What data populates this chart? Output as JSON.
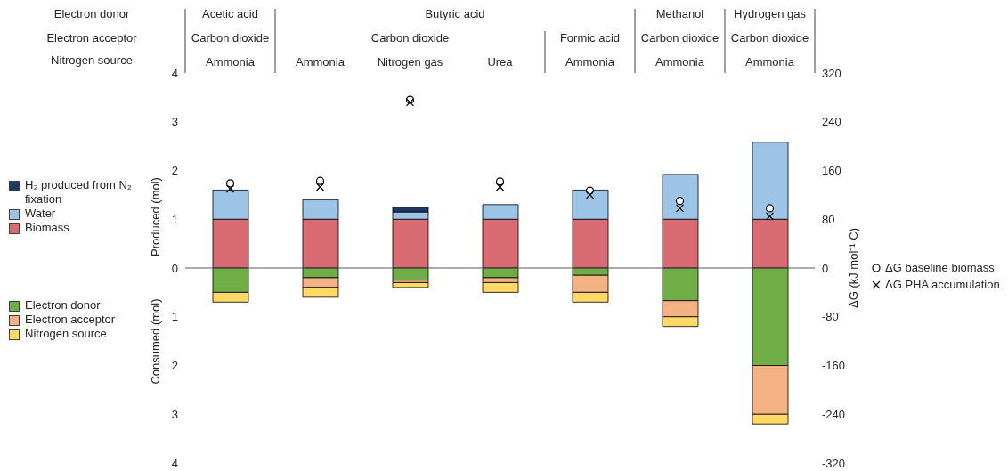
{
  "chart_data": {
    "type": "bar",
    "stacked": true,
    "categories": [
      "Ammonia",
      "Ammonia",
      "Nitrogen gas",
      "Urea",
      "Ammonia",
      "Ammonia",
      "Ammonia"
    ],
    "ylabel": "Produced (mol)",
    "y2label": "ΔG (kJ mol⁻¹ C)",
    "ylim": [
      -4,
      4
    ],
    "yticks": [
      {
        "value": -4,
        "label": "4"
      },
      {
        "value": -3,
        "label": "3"
      },
      {
        "value": -2,
        "label": "2"
      },
      {
        "value": -1,
        "label": "1"
      },
      0,
      1,
      2,
      3,
      4
    ],
    "y2lim": [
      -320,
      320
    ],
    "y2ticks": [
      -320,
      -240,
      -160,
      -80,
      0,
      80,
      160,
      240,
      320
    ],
    "series": [
      {
        "name": "Biomass",
        "color": "#d96b73",
        "values": [
          1,
          1,
          1,
          1,
          1,
          1,
          1
        ]
      },
      {
        "name": "Water",
        "color": "#9dc3e6",
        "values": [
          0.6,
          0.4,
          0.15,
          0.3,
          0.6,
          0.92,
          1.58
        ]
      },
      {
        "name": "H₂ produced from N₂ fixation",
        "color": "#1f3864",
        "values": [
          null,
          null,
          0.1,
          null,
          null,
          null,
          null
        ]
      },
      {
        "name": "Electron donor",
        "color": "#70ad47",
        "values": [
          -0.5,
          -0.2,
          -0.25,
          -0.2,
          -0.15,
          -0.67,
          -2.0
        ]
      },
      {
        "name": "Electron acceptor",
        "color": "#f4b183",
        "values": [
          null,
          -0.2,
          -0.05,
          -0.1,
          -0.35,
          -0.33,
          -1.0
        ]
      },
      {
        "name": "Nitrogen source",
        "color": "#ffd966",
        "values": [
          -0.2,
          -0.2,
          -0.1,
          -0.2,
          -0.2,
          -0.2,
          -0.2
        ]
      },
      {
        "name": "ΔG baseline biomass",
        "type": "scatter",
        "axis": "y2",
        "marker": "circle",
        "color": "#000000",
        "values": [
          139,
          143,
          276,
          142,
          127,
          110,
          98
        ]
      },
      {
        "name": "ΔG PHA accumulation",
        "type": "scatter",
        "axis": "y2",
        "marker": "cross",
        "color": "#000000",
        "values": [
          130,
          133,
          272,
          133,
          120,
          98,
          85
        ]
      }
    ],
    "ref_lines": [
      {
        "axis": "y",
        "value": 0,
        "color": "#595959"
      }
    ],
    "legend": "left",
    "grid": false,
    "annotations": [
      "Electron donor",
      "Electron acceptor",
      "Nitrogen source",
      "Acetic acid",
      "Butyric acid",
      "Methanol",
      "Hydrogen gas",
      "Carbon dioxide",
      "Carbon dioxide",
      "Formic acid",
      "Carbon dioxide",
      "Carbon dioxide",
      "Consumed (mol)"
    ]
  }
}
